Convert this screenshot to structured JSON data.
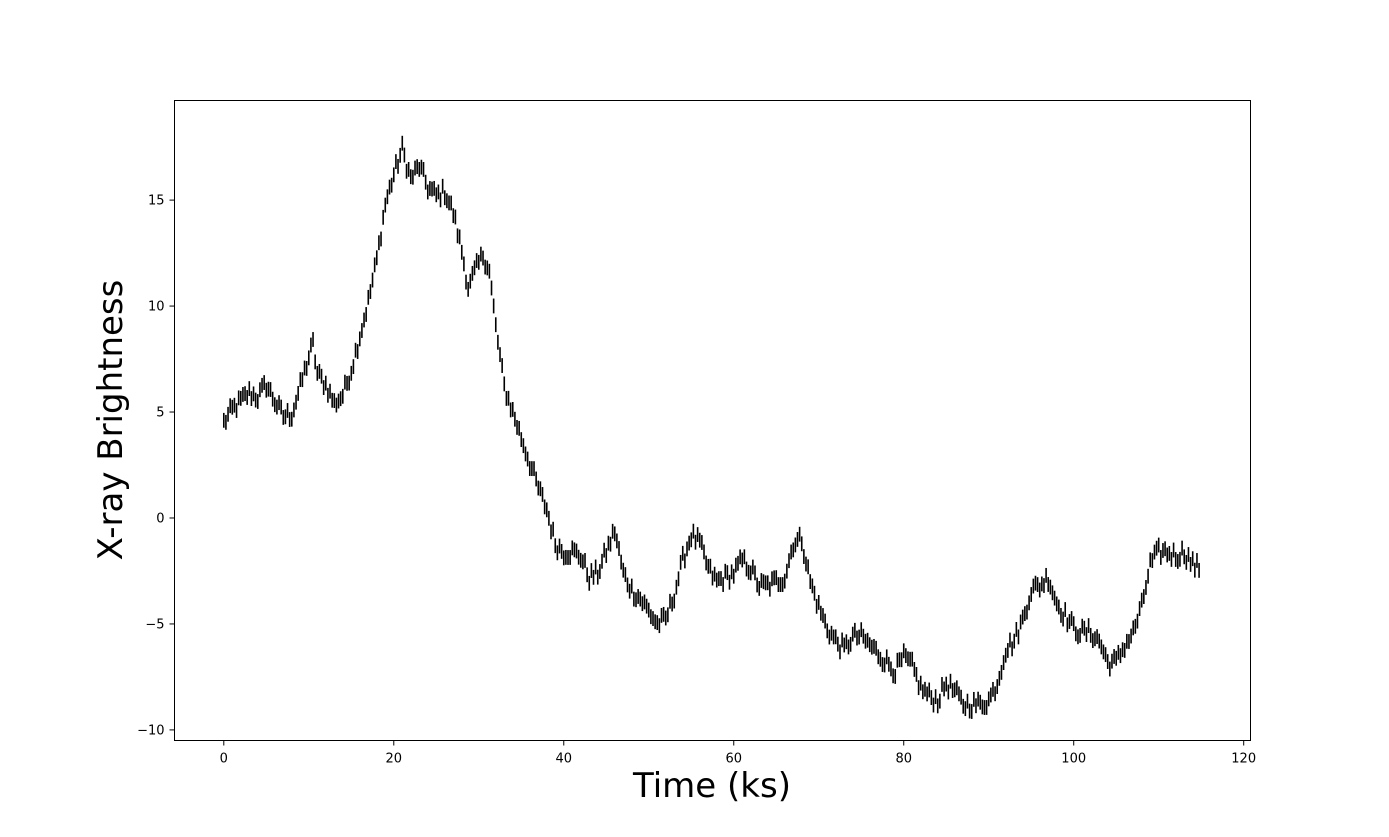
{
  "chart_data": {
    "type": "scatter",
    "marker": "vertical-line",
    "title": "",
    "xlabel": "Time (ks)",
    "ylabel": "X-ray Brightness",
    "xlim": [
      -5.8,
      120.8
    ],
    "ylim": [
      -10.5,
      19.7
    ],
    "xticks": [
      0,
      20,
      40,
      60,
      80,
      100,
      120
    ],
    "yticks": [
      -10,
      -5,
      0,
      5,
      10,
      15
    ],
    "xtick_labels": [
      "0",
      "20",
      "40",
      "60",
      "80",
      "100",
      "120"
    ],
    "ytick_labels": [
      "−10",
      "−5",
      "0",
      "5",
      "10",
      "15"
    ],
    "grid": false,
    "legend": "none",
    "color": "#000000",
    "error_half_height": 0.35,
    "anchors": [
      [
        0,
        4.5
      ],
      [
        1,
        5.1
      ],
      [
        2,
        5.5
      ],
      [
        3,
        5.9
      ],
      [
        4,
        5.7
      ],
      [
        5,
        6.3
      ],
      [
        6,
        5.5
      ],
      [
        7,
        4.8
      ],
      [
        8,
        4.9
      ],
      [
        9,
        6.2
      ],
      [
        10,
        7.6
      ],
      [
        10.5,
        8.2
      ],
      [
        11,
        6.8
      ],
      [
        12,
        6.3
      ],
      [
        13,
        5.4
      ],
      [
        14,
        5.8
      ],
      [
        15,
        7.0
      ],
      [
        16,
        8.6
      ],
      [
        17,
        10.2
      ],
      [
        18,
        12.2
      ],
      [
        19,
        14.8
      ],
      [
        20,
        16.2
      ],
      [
        21,
        17.4
      ],
      [
        22,
        16.0
      ],
      [
        23,
        16.6
      ],
      [
        24,
        15.6
      ],
      [
        25,
        15.2
      ],
      [
        26,
        15.4
      ],
      [
        27,
        14.4
      ],
      [
        28,
        12.6
      ],
      [
        28.8,
        10.8
      ],
      [
        29.5,
        11.6
      ],
      [
        30.5,
        12.4
      ],
      [
        31.2,
        11.8
      ],
      [
        32,
        9.0
      ],
      [
        33,
        6.2
      ],
      [
        34,
        5.0
      ],
      [
        35,
        3.8
      ],
      [
        36,
        2.6
      ],
      [
        37,
        1.4
      ],
      [
        38,
        0.4
      ],
      [
        39,
        -1.2
      ],
      [
        40,
        -1.6
      ],
      [
        41,
        -1.6
      ],
      [
        42,
        -1.8
      ],
      [
        43,
        -2.8
      ],
      [
        44,
        -2.6
      ],
      [
        45,
        -1.6
      ],
      [
        46,
        -0.6
      ],
      [
        47,
        -2.6
      ],
      [
        48,
        -3.4
      ],
      [
        49,
        -3.8
      ],
      [
        50,
        -4.4
      ],
      [
        51,
        -5.0
      ],
      [
        52,
        -4.8
      ],
      [
        53,
        -3.6
      ],
      [
        54,
        -2.0
      ],
      [
        55,
        -0.8
      ],
      [
        56,
        -1.2
      ],
      [
        57,
        -2.4
      ],
      [
        58,
        -3.0
      ],
      [
        59,
        -2.8
      ],
      [
        60,
        -2.6
      ],
      [
        61,
        -2.0
      ],
      [
        62,
        -2.4
      ],
      [
        63,
        -3.2
      ],
      [
        64,
        -3.2
      ],
      [
        65,
        -3.0
      ],
      [
        66,
        -2.8
      ],
      [
        67,
        -1.2
      ],
      [
        68,
        -1.0
      ],
      [
        69,
        -3.0
      ],
      [
        70,
        -4.2
      ],
      [
        71,
        -5.2
      ],
      [
        72,
        -5.8
      ],
      [
        73,
        -6.2
      ],
      [
        74,
        -5.6
      ],
      [
        75,
        -5.6
      ],
      [
        76,
        -6.0
      ],
      [
        77,
        -6.4
      ],
      [
        78,
        -6.8
      ],
      [
        79,
        -7.2
      ],
      [
        80,
        -6.6
      ],
      [
        81,
        -7.0
      ],
      [
        82,
        -8.0
      ],
      [
        83,
        -8.4
      ],
      [
        84,
        -8.6
      ],
      [
        85,
        -7.8
      ],
      [
        86,
        -8.2
      ],
      [
        87,
        -8.8
      ],
      [
        88,
        -8.8
      ],
      [
        89,
        -8.8
      ],
      [
        90,
        -8.6
      ],
      [
        91,
        -7.8
      ],
      [
        92,
        -6.2
      ],
      [
        93,
        -5.8
      ],
      [
        94,
        -4.8
      ],
      [
        95,
        -3.4
      ],
      [
        96,
        -3.2
      ],
      [
        97,
        -2.8
      ],
      [
        98,
        -4.0
      ],
      [
        99,
        -4.6
      ],
      [
        100,
        -5.2
      ],
      [
        101,
        -5.4
      ],
      [
        102,
        -5.4
      ],
      [
        103,
        -5.8
      ],
      [
        104,
        -6.8
      ],
      [
        105,
        -6.8
      ],
      [
        106,
        -6.0
      ],
      [
        107,
        -5.4
      ],
      [
        108,
        -4.2
      ],
      [
        109,
        -2.2
      ],
      [
        110,
        -1.6
      ],
      [
        111,
        -1.6
      ],
      [
        112,
        -1.8
      ],
      [
        113,
        -1.6
      ],
      [
        114,
        -2.2
      ],
      [
        114.8,
        -2.4
      ]
    ],
    "sample_step": 0.25,
    "x_end": 114.8
  }
}
